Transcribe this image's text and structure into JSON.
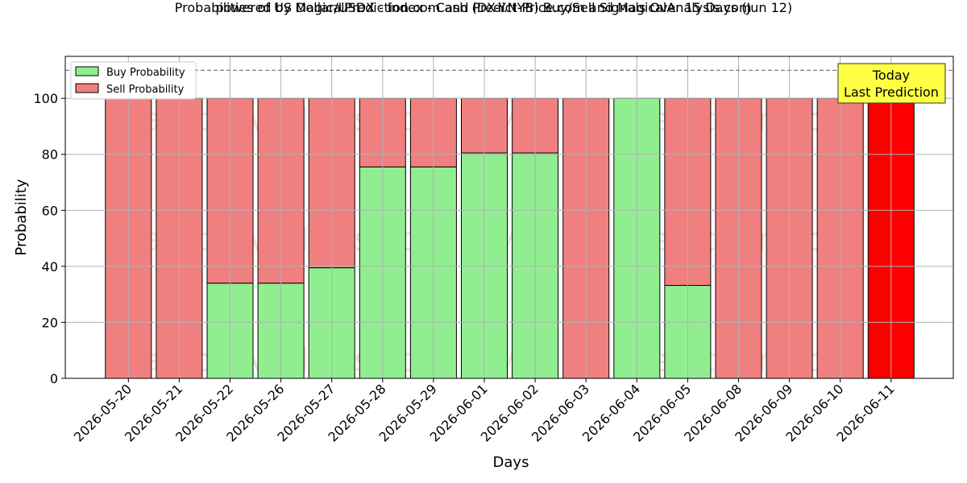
{
  "title": "Probabilities of US Dollar/USDX - Index - Cash (DX-Y.NYB) Buy/Sell Signals Over 15 Days (Jun 12)",
  "subtitle": "powered by MagicalPrediction.com and Predict-Price.com and MagicalAnalysis.com",
  "watermarks": [
    "MagicalAnalysis.com",
    "Magica Prediction.com"
  ],
  "annotation": {
    "line1": "Today",
    "line2": "Last Prediction"
  },
  "colors": {
    "buy": "#90ee90",
    "sell": "#f08080",
    "today": "#ff0000",
    "annotation_bg": "#ffff44",
    "grid": "#b0b0b0"
  },
  "chart_data": {
    "type": "bar",
    "stacked": true,
    "xlabel": "Days",
    "ylabel": "Probability",
    "ylim": [
      0,
      115
    ],
    "yticks": [
      0,
      20,
      40,
      60,
      80,
      100
    ],
    "reference_line": 110,
    "grid": true,
    "legend_position": "top-left",
    "categories": [
      "2026-05-20",
      "2026-05-21",
      "2026-05-22",
      "2026-05-26",
      "2026-05-27",
      "2026-05-28",
      "2026-05-29",
      "2026-06-01",
      "2026-06-02",
      "2026-06-03",
      "2026-06-04",
      "2026-06-05",
      "2026-06-08",
      "2026-06-09",
      "2026-06-10",
      "2026-06-11"
    ],
    "series": [
      {
        "name": "Buy Probability",
        "values": [
          0,
          0,
          34,
          34,
          39.5,
          75.5,
          75.5,
          80.5,
          80.5,
          0,
          100,
          33.2,
          0,
          0,
          0,
          0
        ]
      },
      {
        "name": "Sell Probability",
        "values": [
          100,
          100,
          66,
          66,
          60.5,
          24.5,
          24.5,
          19.5,
          19.5,
          100,
          0,
          66.8,
          100,
          100,
          100,
          100
        ]
      }
    ]
  }
}
